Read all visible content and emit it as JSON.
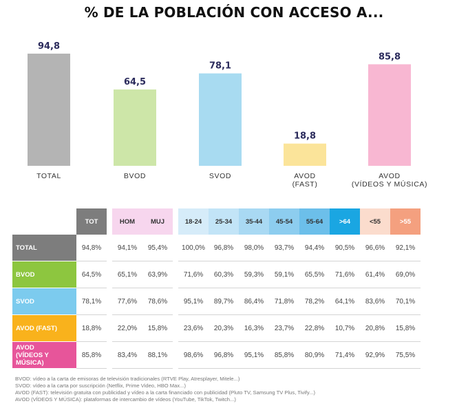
{
  "title": "% DE LA POBLACIÓN CON ACCESO A...",
  "chart_data": {
    "type": "bar",
    "categories": [
      "TOTAL",
      "BVOD",
      "SVOD",
      "AVOD (FAST)",
      "AVOD (VÍDEOS Y MÚSICA)"
    ],
    "category_lines": [
      [
        "TOTAL"
      ],
      [
        "BVOD"
      ],
      [
        "SVOD"
      ],
      [
        "AVOD",
        "(FAST)"
      ],
      [
        "AVOD",
        "(VÍDEOS Y MÚSICA)"
      ]
    ],
    "values": [
      94.8,
      64.5,
      78.1,
      18.8,
      85.8
    ],
    "value_labels": [
      "94,8",
      "64,5",
      "78,1",
      "18,8",
      "85,8"
    ],
    "colors": [
      "#b4b4b4",
      "#cde6a8",
      "#a8dbf1",
      "#fbe49a",
      "#f8b7d2"
    ],
    "ylim": [
      0,
      100
    ],
    "grid": false,
    "legend": "none"
  },
  "table": {
    "columns": [
      {
        "key": "TOT",
        "label": "TOT",
        "bg": "#7d7d7d",
        "color": "#ffffff"
      },
      {
        "gap": true
      },
      {
        "key": "HOM",
        "label": "HOM",
        "bg": "#f7d6ee",
        "color": "#333333"
      },
      {
        "key": "MUJ",
        "label": "MUJ",
        "bg": "#f7d6ee",
        "color": "#333333"
      },
      {
        "gap": true
      },
      {
        "key": "18-24",
        "label": "18-24",
        "bg": "#d6ecf9",
        "color": "#333333"
      },
      {
        "key": "25-34",
        "label": "25-34",
        "bg": "#c2e4f7",
        "color": "#333333"
      },
      {
        "key": "35-44",
        "label": "35-44",
        "bg": "#a9d9f3",
        "color": "#333333"
      },
      {
        "key": "45-54",
        "label": "45-54",
        "bg": "#8dcdef",
        "color": "#333333"
      },
      {
        "key": "55-64",
        "label": "55-64",
        "bg": "#6cbfea",
        "color": "#333333"
      },
      {
        "key": ">64",
        "label": ">64",
        "bg": "#1aa6e2",
        "color": "#ffffff"
      },
      {
        "key": "<55",
        "label": "<55",
        "bg": "#fbdccd",
        "color": "#333333"
      },
      {
        "key": ">55",
        "label": ">55",
        "bg": "#f4a07f",
        "color": "#ffffff"
      }
    ],
    "rows": [
      {
        "label": "TOTAL",
        "bg": "#7d7d7d",
        "values": [
          "94,8%",
          "94,1%",
          "95,4%",
          "100,0%",
          "96,8%",
          "98,0%",
          "93,7%",
          "94,4%",
          "90,5%",
          "96,6%",
          "92,1%"
        ]
      },
      {
        "label": "BVOD",
        "bg": "#8dc63f",
        "values": [
          "64,5%",
          "65,1%",
          "63,9%",
          "71,6%",
          "60,3%",
          "59,3%",
          "59,1%",
          "65,5%",
          "71,6%",
          "61,4%",
          "69,0%"
        ]
      },
      {
        "label": "SVOD",
        "bg": "#7ccbee",
        "values": [
          "78,1%",
          "77,6%",
          "78,6%",
          "95,1%",
          "89,7%",
          "86,4%",
          "71,8%",
          "78,2%",
          "64,1%",
          "83,6%",
          "70,1%"
        ]
      },
      {
        "label": "AVOD (FAST)",
        "bg": "#f9b21c",
        "values": [
          "18,8%",
          "22,0%",
          "15,8%",
          "23,6%",
          "20,3%",
          "16,3%",
          "23,7%",
          "22,8%",
          "10,7%",
          "20,8%",
          "15,8%"
        ]
      },
      {
        "label": "AVOD (VÍDEOS Y MÚSICA)",
        "label_lines": [
          "AVOD",
          "(VÍDEOS Y",
          "MÚSICA)"
        ],
        "bg": "#e7559a",
        "values": [
          "85,8%",
          "83,4%",
          "88,1%",
          "98,6%",
          "96,8%",
          "95,1%",
          "85,8%",
          "80,9%",
          "71,4%",
          "92,9%",
          "75,5%"
        ]
      }
    ]
  },
  "footnotes": [
    "BVOD: vídeo a la carta de emisoras de televisión tradicionales (RTVE Play, Atresplayer, Mitele...)",
    "SVOD: vídeo a la carta por suscripción (Netflix, Prime Video, HBO Max...)",
    "AVOD (FAST): televisión gratuita con publicidad y vídeo a la carta financiado con publicidad (Pluto TV, Samsung TV Plus, Tivify...)",
    "AVOD (VÍDEOS Y MÚSICA): plataformas de intercambio de vídeos (YouTube, TikTok, Twitch...)"
  ]
}
